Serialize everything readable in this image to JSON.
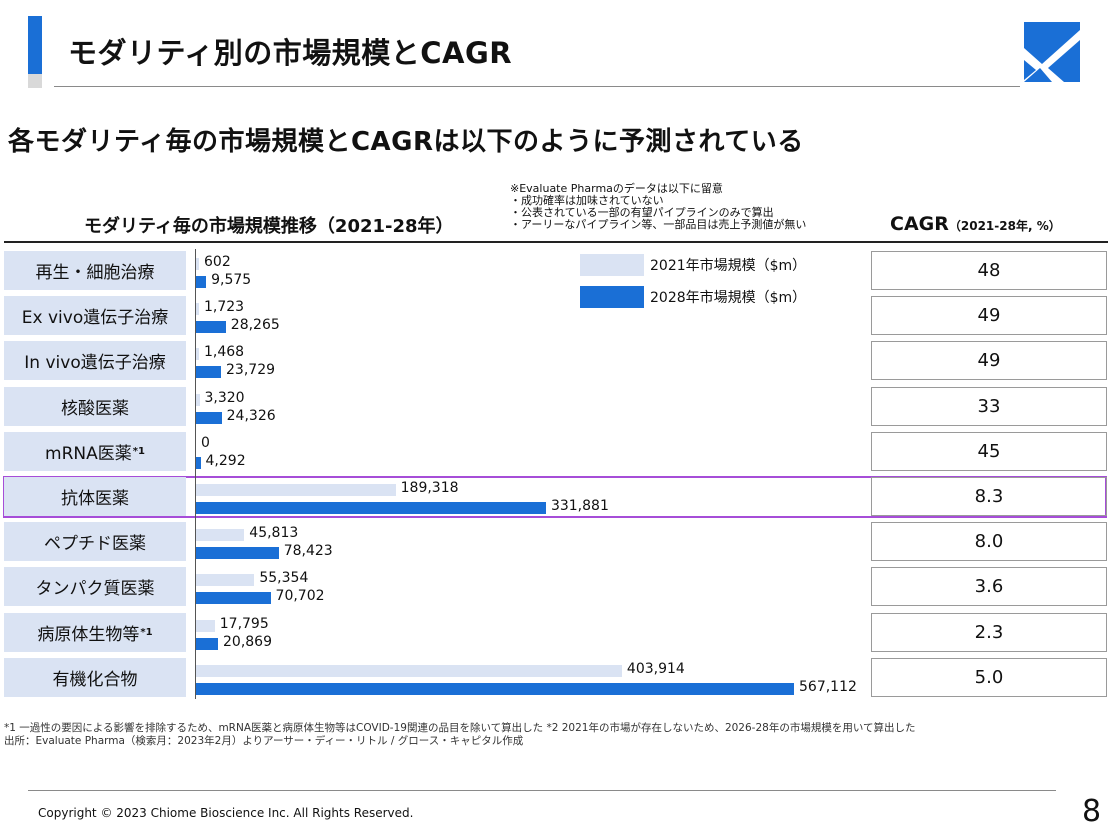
{
  "header": {
    "title": "モダリティ別の市場規模とCAGR",
    "subtitle": "各モダリティ毎の市場規模とCAGRは以下のように予測されている"
  },
  "colors": {
    "accent": "#1a6fd6",
    "bar_2021": "#dae3f3",
    "bar_2028": "#1a6fd6",
    "highlight": "#a64dd8"
  },
  "note": {
    "lines": [
      "※Evaluate Pharmaのデータは以下に留意",
      "・成功確率は加味されていない",
      "・公表されている一部の有望パイプラインのみで算出",
      "・アーリーなパイプライン等、一部品目は売上予測値が無い"
    ]
  },
  "chart_data": {
    "type": "bar",
    "title": "モダリティ毎の市場規模推移（2021-28年）",
    "categories": [
      "再生・細胞治療",
      "Ex vivo遺伝子治療",
      "In vivo遺伝子治療",
      "核酸医薬",
      "mRNA医薬",
      "抗体医薬",
      "ペプチド医薬",
      "タンパク質医薬",
      "病原体生物等",
      "有機化合物"
    ],
    "category_superscripts": [
      "",
      "",
      "",
      "",
      "*1",
      "",
      "",
      "",
      "*1",
      ""
    ],
    "series": [
      {
        "name": "2021年市場規模（$m）",
        "values": [
          602,
          1723,
          1468,
          3320,
          0,
          189318,
          45813,
          55354,
          17795,
          403914
        ],
        "labels": [
          "602",
          "1,723",
          "1,468",
          "3,320",
          "0",
          "189,318",
          "45,813",
          "55,354",
          "17,795",
          "403,914"
        ]
      },
      {
        "name": "2028年市場規模（$m）",
        "values": [
          9575,
          28265,
          23729,
          24326,
          4292,
          331881,
          78423,
          70702,
          20869,
          567112
        ],
        "labels": [
          "9,575",
          "28,265",
          "23,729",
          "24,326",
          "4,292",
          "331,881",
          "78,423",
          "70,702",
          "20,869",
          "567,112"
        ]
      }
    ],
    "highlight_category": "抗体医薬",
    "cagr": {
      "title": "CAGR",
      "title_suffix": "（2021-28年, %）",
      "values": [
        "48",
        "49",
        "49",
        "33",
        "45",
        "8.3",
        "8.0",
        "3.6",
        "2.3",
        "5.0"
      ]
    }
  },
  "footer": {
    "footnote1": "*1 一過性の要因による影響を排除するため、mRNA医薬と病原体生物等はCOVID-19関連の品目を除いて算出した *2 2021年の市場が存在しないため、2026-28年の市場規模を用いて算出した",
    "footnote2": "出所：Evaluate Pharma（検索月：2023年2月）よりアーサー・ディー・リトル / グロース・キャピタル作成",
    "copyright": "Copyright © 2023 Chiome Bioscience Inc. All Rights Reserved.",
    "page_number": "8"
  }
}
